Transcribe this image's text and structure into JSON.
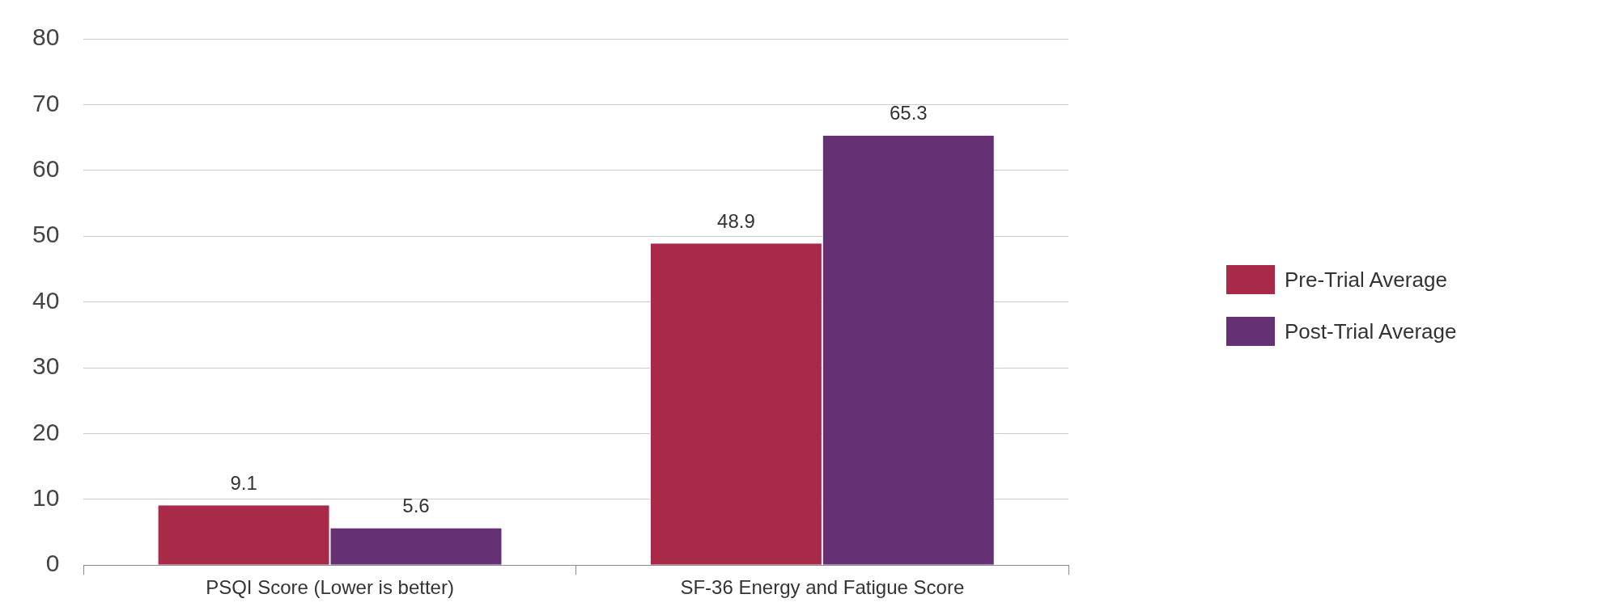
{
  "chart_data": {
    "type": "bar",
    "categories": [
      "PSQI Score (Lower is better)",
      "SF-36 Energy and Fatigue Score"
    ],
    "series": [
      {
        "name": "Pre-Trial Average",
        "color": "#a82a48",
        "values": [
          9.1,
          48.9
        ]
      },
      {
        "name": "Post-Trial Average",
        "color": "#663075",
        "values": [
          5.6,
          65.3
        ]
      }
    ],
    "ylim": [
      0,
      80
    ],
    "yticks": [
      0,
      10,
      20,
      30,
      40,
      50,
      60,
      70,
      80
    ],
    "grid": "y",
    "legend": "right",
    "data_labels": true
  }
}
